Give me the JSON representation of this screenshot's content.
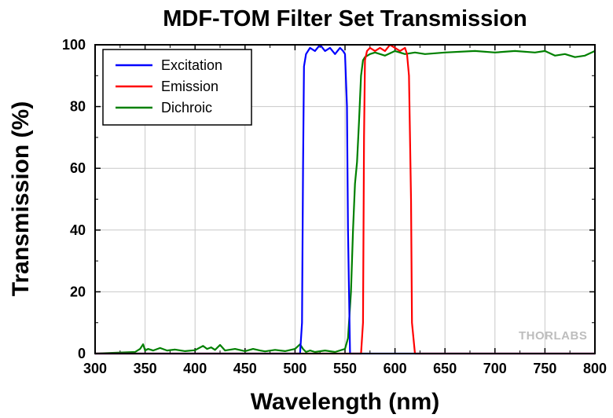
{
  "chart_data": {
    "type": "line",
    "title": "MDF-TOM Filter Set Transmission",
    "xlabel": "Wavelength (nm)",
    "ylabel": "Transmission (%)",
    "xlim": [
      300,
      800
    ],
    "ylim": [
      0,
      100
    ],
    "xticks": [
      "300",
      "350",
      "400",
      "450",
      "500",
      "550",
      "600",
      "650",
      "700",
      "750",
      "800"
    ],
    "yticks": [
      "0",
      "20",
      "40",
      "60",
      "80",
      "100"
    ],
    "grid": true,
    "legend_position": "top-left",
    "series": [
      {
        "name": "Excitation",
        "color": "#0000ff",
        "x": [
          300,
          505,
          507,
          508,
          509,
          511,
          515,
          520,
          525,
          530,
          535,
          540,
          545,
          548,
          550,
          552,
          553,
          555,
          800
        ],
        "y": [
          0,
          0,
          10,
          60,
          93,
          97,
          99,
          98,
          100,
          98,
          99,
          97,
          99,
          98,
          97,
          80,
          40,
          0,
          0
        ]
      },
      {
        "name": "Emission",
        "color": "#ff0000",
        "x": [
          300,
          566,
          568,
          569,
          570,
          572,
          575,
          580,
          585,
          590,
          595,
          600,
          605,
          610,
          612,
          614,
          616,
          617,
          620,
          800
        ],
        "y": [
          0,
          0,
          10,
          70,
          95,
          98,
          99,
          98,
          99,
          98,
          100,
          99,
          98,
          99,
          97,
          90,
          50,
          10,
          0,
          0
        ]
      },
      {
        "name": "Dichroic",
        "color": "#008000",
        "x": [
          300,
          340,
          345,
          348,
          350,
          353,
          358,
          365,
          372,
          380,
          390,
          400,
          408,
          412,
          416,
          420,
          425,
          430,
          440,
          450,
          458,
          465,
          470,
          480,
          490,
          500,
          505,
          508,
          511,
          515,
          520,
          530,
          540,
          550,
          553,
          556,
          558,
          560,
          562,
          564,
          566,
          568,
          570,
          575,
          580,
          590,
          600,
          610,
          620,
          630,
          650,
          680,
          700,
          720,
          740,
          750,
          760,
          770,
          780,
          790,
          800
        ],
        "y": [
          0,
          0.5,
          1.5,
          3,
          1,
          1.5,
          1,
          1.8,
          1,
          1.3,
          0.8,
          1.1,
          2.5,
          1.5,
          2,
          1.2,
          2.8,
          1,
          1.5,
          0.8,
          1.5,
          1,
          0.7,
          1.2,
          0.8,
          1.5,
          3,
          1.5,
          0.5,
          1,
          0.5,
          1,
          0.5,
          1.5,
          5,
          20,
          40,
          55,
          62,
          75,
          90,
          95,
          96,
          97,
          97.5,
          96.5,
          98,
          97,
          97.5,
          97,
          97.5,
          98,
          97.5,
          98,
          97.5,
          98,
          96.5,
          97,
          96,
          96.5,
          98
        ]
      }
    ],
    "watermark": "THORLABS"
  }
}
